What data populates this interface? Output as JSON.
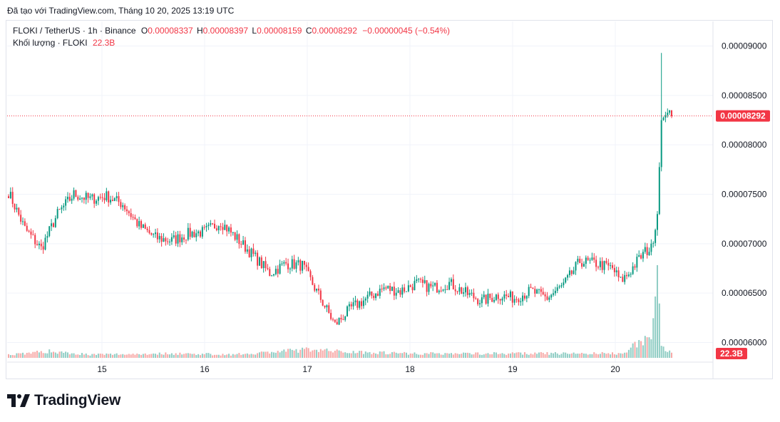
{
  "header": {
    "caption": "Đã tạo với TradingView.com, Tháng 10 20, 2025 13:19 UTC"
  },
  "legend": {
    "symbol": "FLOKI / TetherUS · 1h · Binance",
    "o_label": "O",
    "o_value": "0.00008337",
    "h_label": "H",
    "h_value": "0.00008397",
    "l_label": "L",
    "l_value": "0.00008159",
    "c_label": "C",
    "c_value": "0.00008292",
    "change": "−0.00000045 (−0.54%)",
    "volume_label": "Khối lượng · FLOKI",
    "volume_value": "22.3B"
  },
  "brand": {
    "name": "TradingView",
    "logo_icon": "tradingview-logo-icon"
  },
  "colors": {
    "up": "#089981",
    "down": "#f23645",
    "vol_up": "#8fcdc4",
    "vol_down": "#f7a9a7",
    "grid": "#f0f3fa"
  },
  "chart_data": {
    "type": "candlestick",
    "title": "FLOKI / TetherUS · 1h · Binance",
    "x_ticks": [
      "15",
      "16",
      "17",
      "18",
      "19",
      "20"
    ],
    "y_ticks": [
      "0.00009000",
      "0.00008500",
      "0.00008000",
      "0.00007500",
      "0.00007000",
      "0.00006500",
      "0.00006000"
    ],
    "ylim": [
      5.86e-05,
      9.32e-05
    ],
    "last_price": "0.00008292",
    "last_volume": "22.3B",
    "grid": true,
    "price_close_path": [
      [
        0,
        7.52
      ],
      [
        8,
        7.15
      ],
      [
        16,
        6.95
      ],
      [
        24,
        7.3
      ],
      [
        32,
        7.5
      ],
      [
        40,
        7.45
      ],
      [
        48,
        7.48
      ],
      [
        56,
        7.4
      ],
      [
        64,
        7.18
      ],
      [
        72,
        7.06
      ],
      [
        80,
        7.03
      ],
      [
        88,
        7.1
      ],
      [
        96,
        7.12
      ],
      [
        104,
        7.22
      ],
      [
        112,
        7.05
      ],
      [
        120,
        6.88
      ],
      [
        128,
        6.7
      ],
      [
        136,
        6.8
      ],
      [
        144,
        6.78
      ],
      [
        152,
        6.48
      ],
      [
        160,
        6.18
      ],
      [
        168,
        6.35
      ],
      [
        176,
        6.45
      ],
      [
        184,
        6.55
      ],
      [
        192,
        6.52
      ],
      [
        200,
        6.6
      ],
      [
        208,
        6.55
      ],
      [
        216,
        6.6
      ],
      [
        224,
        6.5
      ],
      [
        232,
        6.42
      ],
      [
        240,
        6.48
      ],
      [
        248,
        6.45
      ],
      [
        256,
        6.52
      ],
      [
        264,
        6.45
      ],
      [
        272,
        6.58
      ],
      [
        280,
        6.82
      ],
      [
        288,
        6.8
      ],
      [
        296,
        6.75
      ],
      [
        300,
        6.62
      ],
      [
        304,
        6.7
      ],
      [
        308,
        6.82
      ],
      [
        312,
        6.92
      ],
      [
        315,
        6.95
      ],
      [
        318,
        7.3
      ],
      [
        320,
        8.25
      ],
      [
        322,
        8.3
      ],
      [
        324,
        8.35
      ],
      [
        325,
        8.29
      ]
    ],
    "volume_relative": [
      [
        0,
        0.3
      ],
      [
        20,
        0.6
      ],
      [
        40,
        0.3
      ],
      [
        80,
        0.4
      ],
      [
        110,
        0.3
      ],
      [
        150,
        0.8
      ],
      [
        160,
        0.6
      ],
      [
        200,
        0.4
      ],
      [
        250,
        0.4
      ],
      [
        300,
        0.4
      ],
      [
        315,
        2.0
      ],
      [
        318,
        6.8
      ],
      [
        320,
        1.4
      ],
      [
        322,
        0.9
      ],
      [
        325,
        0.5
      ]
    ]
  }
}
